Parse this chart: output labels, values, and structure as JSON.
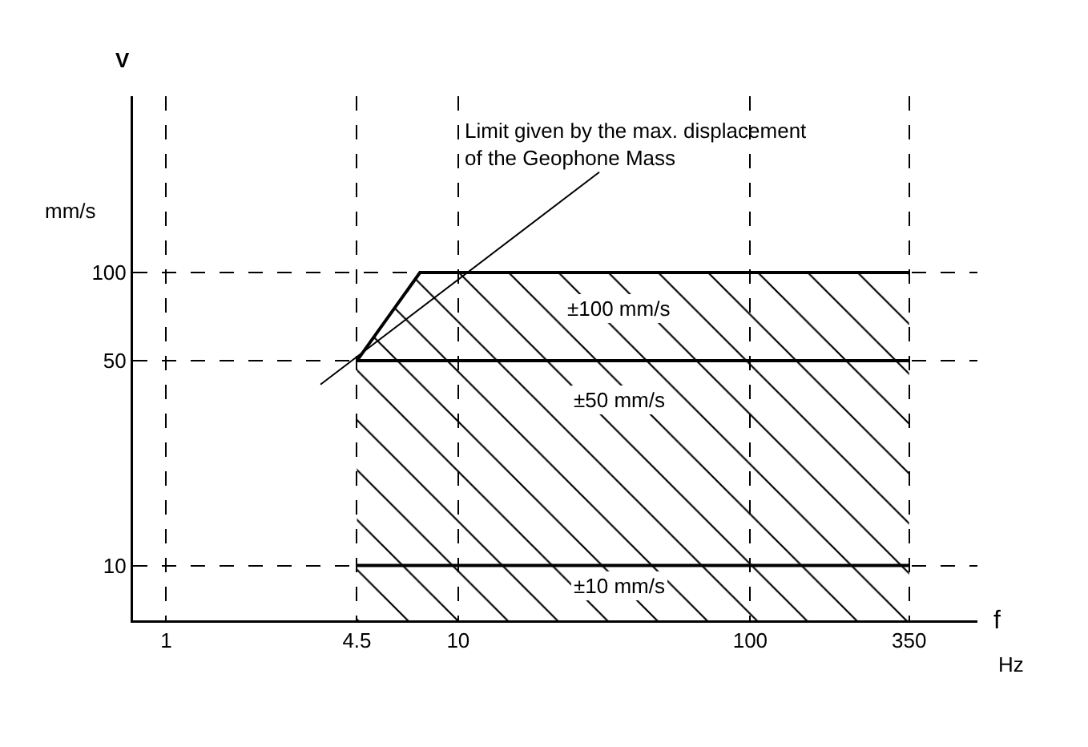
{
  "chart_data": {
    "type": "line",
    "xlabel": "f",
    "ylabel": "V",
    "log": "xy",
    "grid": true,
    "line_style": "solid",
    "marker": "none",
    "xlim": [
      0.77,
      600
    ],
    "xticks": [
      1,
      4.5,
      10,
      100,
      350
    ],
    "ylim": [
      6.5,
      400
    ],
    "yticks": [
      10,
      50,
      100
    ],
    "series": [
      {
        "type": "area",
        "color": "#000000",
        "x": [
          4.5,
          7.4,
          350
        ],
        "values": [
          50,
          100,
          100
        ]
      },
      {
        "color": "#000000",
        "x": [
          4.5,
          350
        ],
        "values": [
          50,
          50
        ]
      },
      {
        "color": "#000000",
        "x": [
          4.5,
          350
        ],
        "values": [
          10,
          10
        ]
      }
    ],
    "annotations": [
      "mm/s",
      "Hz",
      "Limit given by the max. displacement\nof the Geophone Mass",
      "±100 mm/s",
      "±50 mm/s",
      "±10 mm/s"
    ]
  }
}
